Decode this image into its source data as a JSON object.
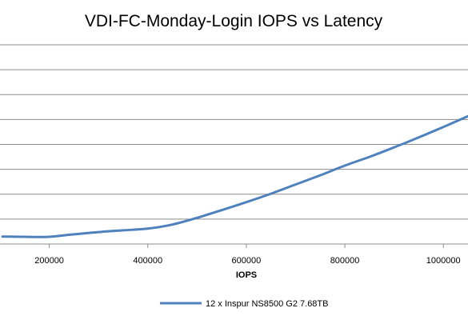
{
  "chart_data": {
    "type": "line",
    "title": "VDI-FC-Monday-Login IOPS vs Latency",
    "xlabel": "IOPS",
    "ylabel": "",
    "xlim": [
      100000,
      1050000
    ],
    "x_ticks": [
      200000,
      400000,
      600000,
      800000,
      1000000
    ],
    "x_tick_labels": [
      "200000",
      "400000",
      "600000",
      "800000",
      "1000000"
    ],
    "y_gridline_count": 8,
    "grid": true,
    "legend_position": "bottom",
    "series": [
      {
        "name": "12 x Inspur NS8500 G2 7.68TB",
        "color": "#4f81bd",
        "x": [
          105000,
          150000,
          200000,
          250000,
          300000,
          350000,
          400000,
          450000,
          500000,
          550000,
          600000,
          650000,
          700000,
          750000,
          800000,
          850000,
          900000,
          950000,
          1000000,
          1050000
        ],
        "y": [
          0.3,
          0.289,
          0.29,
          0.39,
          0.48,
          0.55,
          0.617,
          0.78,
          1.05,
          1.36,
          1.68,
          2.02,
          2.39,
          2.76,
          3.15,
          3.5,
          3.88,
          4.28,
          4.7,
          5.13
        ]
      }
    ]
  }
}
